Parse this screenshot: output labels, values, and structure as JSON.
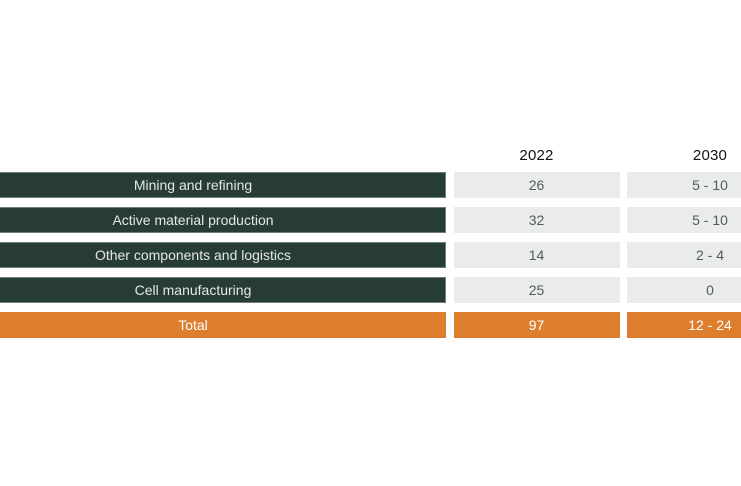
{
  "chart_data": {
    "type": "table",
    "columns": [
      "2022",
      "2030"
    ],
    "rows": [
      {
        "label": "Mining and refining",
        "values": [
          "26",
          "5 - 10"
        ]
      },
      {
        "label": "Active material production",
        "values": [
          "32",
          "5 - 10"
        ]
      },
      {
        "label": "Other components and logistics",
        "values": [
          "14",
          "2 - 4"
        ]
      },
      {
        "label": "Cell manufacturing",
        "values": [
          "25",
          "0"
        ]
      }
    ],
    "total_row": {
      "label": "Total",
      "values": [
        "97",
        "12 - 24"
      ]
    },
    "layout": "row labels on dark bars, value columns as gray cells, orange total row; table cropped at left and right viewport edges"
  },
  "colors": {
    "dark_bar": "#273b37",
    "total_bar": "#dd7e2e",
    "value_cell_bg": "#e9eceb",
    "value_text": "#545c5a",
    "label_text": "#e4e8e7",
    "total_text": "#ffffff",
    "header_text": "#131313",
    "background": "#ffffff"
  }
}
